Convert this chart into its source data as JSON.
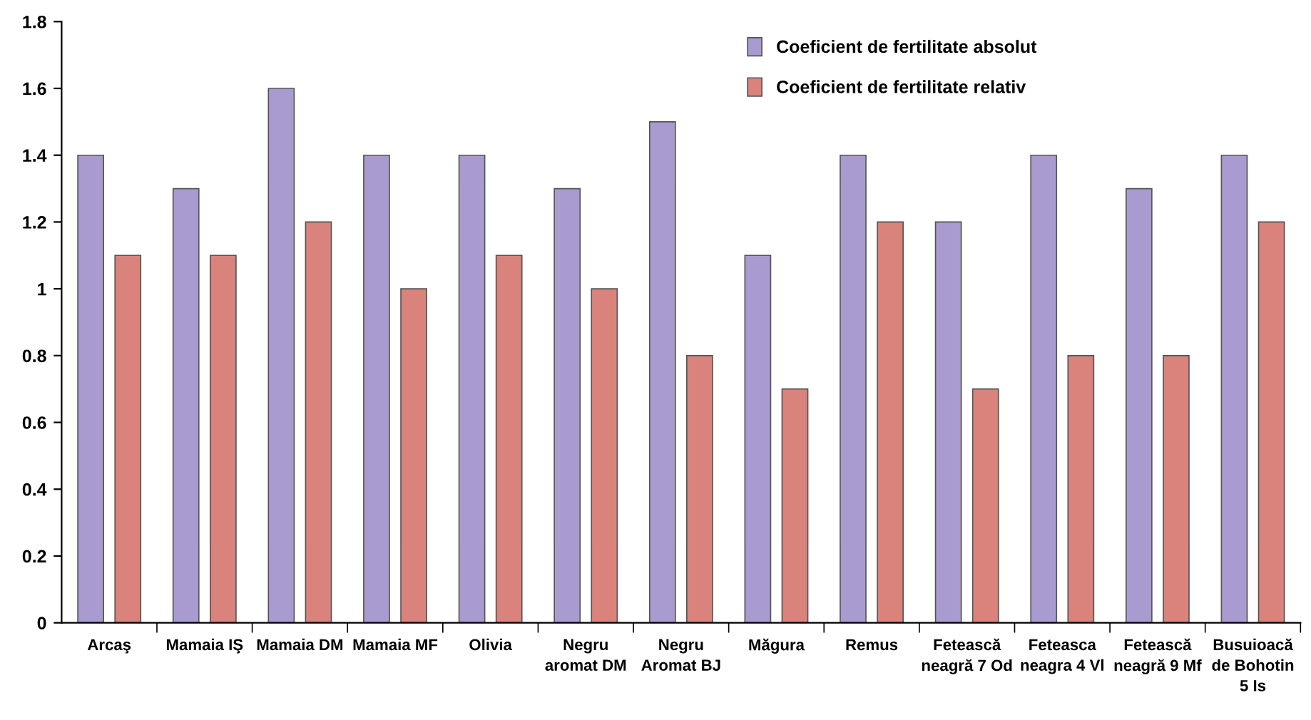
{
  "chart_data": {
    "type": "bar",
    "categories": [
      "Arcaş",
      "Mamaia IŞ",
      "Mamaia DM",
      "Mamaia MF",
      "Olivia",
      "Negru\naromat DM",
      "Negru\nAromat BJ",
      "Măgura",
      "Remus",
      "Fetească\nneagră 7 Od",
      "Feteasca\nneagra 4 Vl",
      "Fetească\nneagră 9 Mf",
      "Busuioacă\nde Bohotin\n5 Is"
    ],
    "series": [
      {
        "name": "Coeficient de fertilitate absolut",
        "color": "#a99bd0",
        "values": [
          1.4,
          1.3,
          1.6,
          1.4,
          1.4,
          1.3,
          1.5,
          1.1,
          1.4,
          1.2,
          1.4,
          1.3,
          1.4
        ]
      },
      {
        "name": "Coeficient de fertilitate relativ",
        "color": "#d9837c",
        "values": [
          1.1,
          1.1,
          1.2,
          1.0,
          1.1,
          1.0,
          0.8,
          0.7,
          1.2,
          0.7,
          0.8,
          0.8,
          1.2
        ]
      }
    ],
    "ylim": [
      0,
      1.8
    ],
    "yticks": [
      0,
      0.2,
      0.4,
      0.6,
      0.8,
      1,
      1.2,
      1.4,
      1.6,
      1.8
    ],
    "grid": false,
    "legend": "top right"
  }
}
